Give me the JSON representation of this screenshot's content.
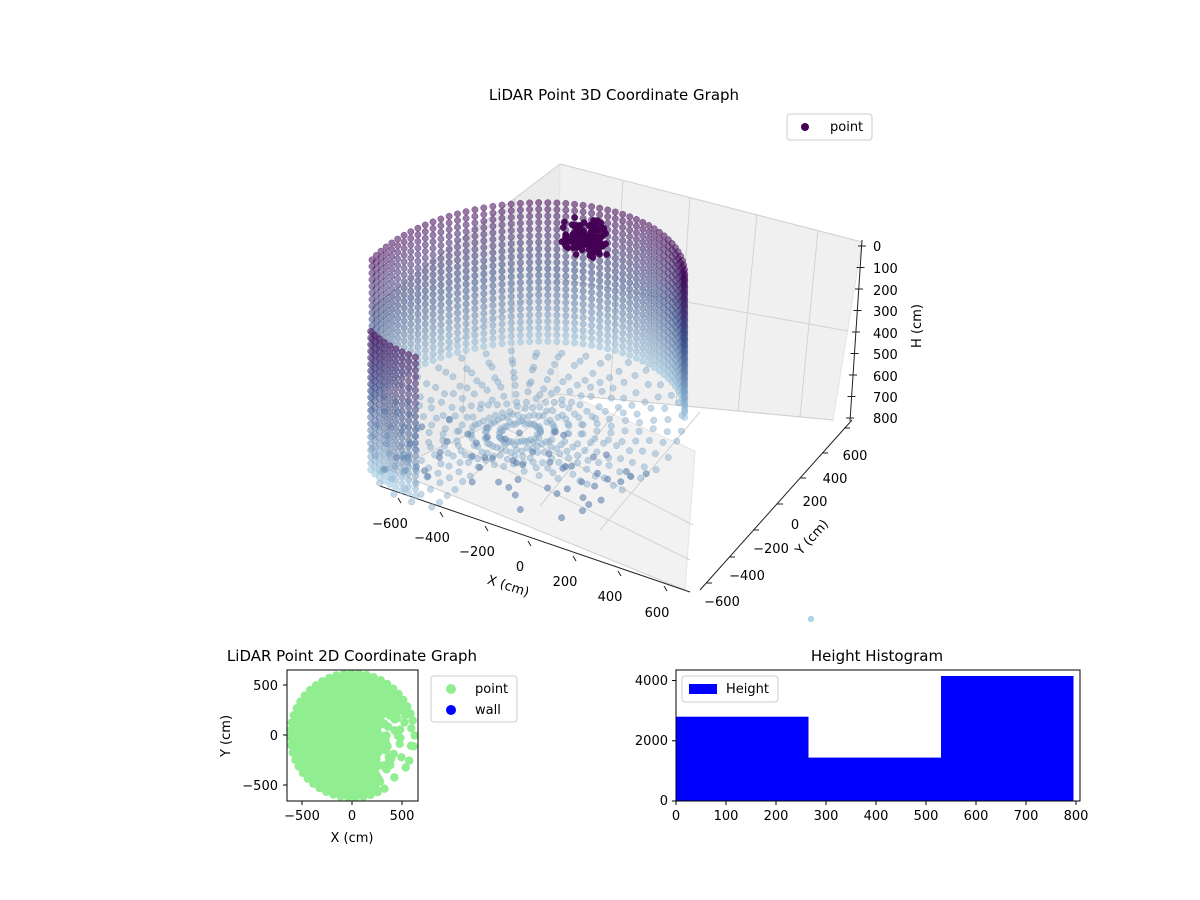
{
  "colors": {
    "viridis_dark": "#440154",
    "viridis_mid": "#3b528b",
    "viridis_light": "#9ecae1",
    "point_2d": "#90ee90",
    "wall_2d": "#0000ff",
    "histogram": "#0000ff",
    "pane": "#f2f2f2",
    "grid": "#cfcfcf"
  },
  "chart_data": [
    {
      "type": "scatter",
      "projection": "3d",
      "title": "LiDAR Point 3D Coordinate Graph",
      "xlabel": "X (cm)",
      "ylabel": "Y (cm)",
      "zlabel": "H (cm)",
      "xlim": [
        -700,
        700
      ],
      "ylim": [
        -700,
        700
      ],
      "zlim": [
        800,
        0
      ],
      "xticks": [
        "−600",
        "−400",
        "−200",
        "0",
        "200",
        "400",
        "600"
      ],
      "yticks": [
        "−600",
        "−400",
        "−200",
        "0",
        "200",
        "400",
        "600"
      ],
      "zticks": [
        "0",
        "100",
        "200",
        "300",
        "400",
        "500",
        "600",
        "700",
        "800"
      ],
      "legend": [
        "point"
      ],
      "legend_position": "upper right",
      "grid": true,
      "wall_radius_cm": 640,
      "wall_height_cm": [
        100,
        600
      ],
      "colormap": "viridis"
    },
    {
      "type": "scatter",
      "title": "LiDAR Point 2D Coordinate Graph",
      "xlabel": "X (cm)",
      "ylabel": "Y (cm)",
      "xlim": [
        -650,
        650
      ],
      "ylim": [
        -650,
        650
      ],
      "xticks": [
        "−500",
        "0",
        "500"
      ],
      "yticks": [
        "500",
        "0",
        "−500"
      ],
      "legend": [
        "point",
        "wall"
      ],
      "legend_position": "outside right"
    },
    {
      "type": "bar",
      "title": "Height Histogram",
      "bins": [
        [
          0,
          265
        ],
        [
          265,
          530
        ],
        [
          530,
          795
        ]
      ],
      "values": [
        2800,
        1440,
        4150
      ],
      "xlim": [
        0,
        800
      ],
      "ylim": [
        0,
        4350
      ],
      "xticks": [
        "0",
        "100",
        "200",
        "300",
        "400",
        "500",
        "600",
        "700",
        "800"
      ],
      "yticks": [
        "0",
        "2000",
        "4000"
      ],
      "legend": [
        "Height"
      ],
      "legend_position": "upper left"
    }
  ]
}
